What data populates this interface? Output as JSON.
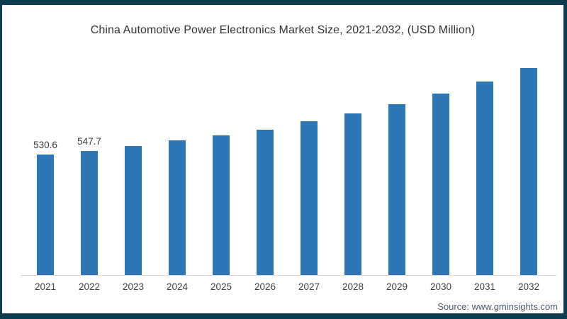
{
  "title": "China Automotive Power Electronics Market Size, 2021-2032, (USD Million)",
  "source": "Source: www.gminsights.com",
  "colors": {
    "frame_border": "#0d3c50",
    "bar": "#2d76b5",
    "axis_line": "#d9d9d9",
    "title_text": "#333333",
    "tick_text": "#3f3f3f",
    "source_text": "#4d5b6b"
  },
  "chart_data": {
    "type": "bar",
    "title": "China Automotive Power Electronics Market Size, 2021-2032, (USD Million)",
    "categories": [
      "2021",
      "2022",
      "2023",
      "2024",
      "2025",
      "2026",
      "2027",
      "2028",
      "2029",
      "2030",
      "2031",
      "2032"
    ],
    "values": [
      530.6,
      547.7,
      568,
      592,
      616,
      641,
      676,
      711,
      752,
      799,
      852,
      911
    ],
    "value_labels": [
      "530.6",
      "547.7",
      "",
      "",
      "",
      "",
      "",
      "",
      "",
      "",
      "",
      ""
    ],
    "xlabel": "",
    "ylabel": "",
    "unit": "USD Million",
    "ylim": [
      0,
      950
    ],
    "grid": false,
    "legend": false,
    "bar_color": "#2d76b5",
    "axis_line_color": "#d9d9d9"
  }
}
